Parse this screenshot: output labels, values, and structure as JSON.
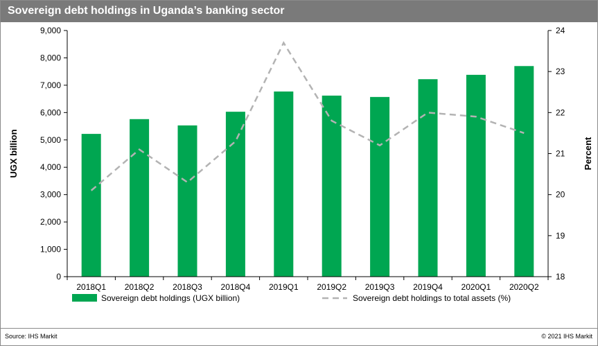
{
  "title": "Sovereign debt holdings in Uganda’s banking sector",
  "source": "Source:  IHS Markit",
  "copyright": "© 2021  IHS Markit",
  "colors": {
    "bar": "#00a651",
    "line": "#b3b3b3",
    "title_bg": "#7a7a7a"
  },
  "chart_data": {
    "type": "bar",
    "categories": [
      "2018Q1",
      "2018Q2",
      "2018Q3",
      "2018Q4",
      "2019Q1",
      "2019Q2",
      "2019Q3",
      "2019Q4",
      "2020Q1",
      "2020Q2"
    ],
    "series": [
      {
        "name": "Sovereign debt holdings (UGX billion)",
        "type": "bar",
        "axis": "left",
        "values": [
          5220,
          5760,
          5530,
          6030,
          6770,
          6620,
          6570,
          7220,
          7380,
          7700
        ]
      },
      {
        "name": "Sovereign debt holdings to total assets (%)",
        "type": "line",
        "style": "dashed",
        "axis": "right",
        "values": [
          20.1,
          21.1,
          20.3,
          21.3,
          23.7,
          21.8,
          21.2,
          22.0,
          21.9,
          21.5
        ]
      }
    ],
    "ylabel": "UGX billion",
    "ylabel_right": "Percent",
    "ylim": [
      0,
      9000
    ],
    "ylim_right": [
      18,
      24
    ],
    "yticks": [
      "0",
      "1,000",
      "2,000",
      "3,000",
      "4,000",
      "5,000",
      "6,000",
      "7,000",
      "8,000",
      "9,000"
    ],
    "yticks_right": [
      "18",
      "19",
      "20",
      "21",
      "22",
      "23",
      "24"
    ],
    "legend_position": "bottom",
    "grid": false
  }
}
